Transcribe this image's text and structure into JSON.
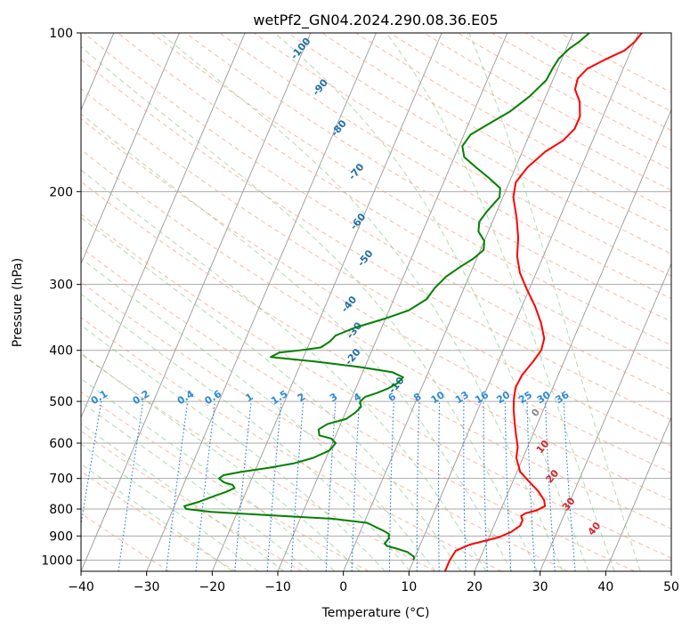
{
  "chart_data": {
    "type": "line",
    "title": "wetPf2_GN04.2024.290.08.36.E05",
    "xlabel": "Temperature (°C)",
    "ylabel": "Pressure (hPa)",
    "xlim": [
      -40,
      50
    ],
    "ylim": [
      1050,
      100
    ],
    "y_scale": "log",
    "grid": true,
    "x_ticks": [
      -40,
      -30,
      -20,
      -10,
      0,
      10,
      20,
      30,
      40,
      50
    ],
    "x_tick_labels": [
      "−40",
      "−30",
      "−20",
      "−10",
      "0",
      "10",
      "20",
      "30",
      "40",
      "50"
    ],
    "y_ticks": [
      100,
      200,
      300,
      400,
      500,
      600,
      700,
      800,
      900,
      1000
    ],
    "y_tick_labels": [
      "100",
      "200",
      "300",
      "400",
      "500",
      "600",
      "700",
      "800",
      "900",
      "1000"
    ],
    "series": [
      {
        "color": "#ff0000",
        "style": "temperature",
        "points": [
          [
            15.5,
            1050
          ],
          [
            15.5,
            1000
          ],
          [
            15.8,
            960
          ],
          [
            17.5,
            935
          ],
          [
            19.5,
            920
          ],
          [
            21.5,
            905
          ],
          [
            23.0,
            885
          ],
          [
            24.0,
            860
          ],
          [
            24.0,
            840
          ],
          [
            23.5,
            825
          ],
          [
            24.0,
            815
          ],
          [
            25.5,
            805
          ],
          [
            26.5,
            790
          ],
          [
            26.0,
            770
          ],
          [
            24.5,
            740
          ],
          [
            22.5,
            710
          ],
          [
            20.5,
            680
          ],
          [
            19.0,
            640
          ],
          [
            18.5,
            610
          ],
          [
            17.5,
            580
          ],
          [
            16.5,
            550
          ],
          [
            15.5,
            520
          ],
          [
            14.8,
            495
          ],
          [
            14.3,
            470
          ],
          [
            14.5,
            445
          ],
          [
            15.3,
            420
          ],
          [
            15.8,
            400
          ],
          [
            15.5,
            380
          ],
          [
            14.0,
            355
          ],
          [
            12.0,
            330
          ],
          [
            9.5,
            305
          ],
          [
            7.5,
            285
          ],
          [
            6.0,
            265
          ],
          [
            5.0,
            245
          ],
          [
            3.5,
            225
          ],
          [
            1.6,
            205
          ],
          [
            1.0,
            192
          ],
          [
            1.8,
            180
          ],
          [
            3.5,
            168
          ],
          [
            5.5,
            160
          ],
          [
            6.5,
            152
          ],
          [
            6.5,
            144
          ],
          [
            5.5,
            135
          ],
          [
            4.0,
            128
          ],
          [
            3.7,
            122
          ],
          [
            4.5,
            117
          ],
          [
            6.8,
            112
          ],
          [
            9.0,
            108
          ],
          [
            10.0,
            104
          ],
          [
            10.5,
            100
          ]
        ]
      },
      {
        "color": "#008000",
        "style": "dewpoint",
        "points": [
          [
            10.0,
            1000
          ],
          [
            9.8,
            985
          ],
          [
            8.5,
            965
          ],
          [
            6.5,
            950
          ],
          [
            5.0,
            940
          ],
          [
            4.5,
            930
          ],
          [
            4.8,
            910
          ],
          [
            4.5,
            892
          ],
          [
            3.5,
            880
          ],
          [
            2.0,
            865
          ],
          [
            0.5,
            850
          ],
          [
            -5.0,
            835
          ],
          [
            -15.0,
            822
          ],
          [
            -24.0,
            810
          ],
          [
            -28.0,
            800
          ],
          [
            -28.5,
            790
          ],
          [
            -26.5,
            775
          ],
          [
            -24.5,
            755
          ],
          [
            -23.0,
            742
          ],
          [
            -22.0,
            730
          ],
          [
            -22.5,
            720
          ],
          [
            -24.0,
            712
          ],
          [
            -25.0,
            700
          ],
          [
            -24.5,
            690
          ],
          [
            -22.0,
            680
          ],
          [
            -18.0,
            668
          ],
          [
            -14.5,
            655
          ],
          [
            -12.0,
            640
          ],
          [
            -10.0,
            620
          ],
          [
            -9.5,
            600
          ],
          [
            -10.5,
            588
          ],
          [
            -12.5,
            580
          ],
          [
            -13.0,
            565
          ],
          [
            -12.0,
            552
          ],
          [
            -9.5,
            540
          ],
          [
            -8.5,
            525
          ],
          [
            -8.0,
            512
          ],
          [
            -8.5,
            500
          ],
          [
            -8.0,
            490
          ],
          [
            -6.5,
            482
          ],
          [
            -5.0,
            472
          ],
          [
            -4.0,
            462
          ],
          [
            -3.5,
            450
          ],
          [
            -5.5,
            440
          ],
          [
            -11.0,
            430
          ],
          [
            -18.0,
            420
          ],
          [
            -25.0,
            412
          ],
          [
            -24.0,
            404
          ],
          [
            -21.0,
            400
          ],
          [
            -18.0,
            395
          ],
          [
            -17.0,
            385
          ],
          [
            -16.5,
            375
          ],
          [
            -14.0,
            362
          ],
          [
            -10.0,
            348
          ],
          [
            -7.0,
            336
          ],
          [
            -5.0,
            320
          ],
          [
            -4.5,
            305
          ],
          [
            -3.5,
            290
          ],
          [
            -2.0,
            278
          ],
          [
            -0.5,
            268
          ],
          [
            0.5,
            258
          ],
          [
            0.0,
            248
          ],
          [
            -1.5,
            238
          ],
          [
            -2.0,
            228
          ],
          [
            -1.5,
            218
          ],
          [
            -0.5,
            205
          ],
          [
            -1.0,
            197
          ],
          [
            -3.5,
            188
          ],
          [
            -6.0,
            180
          ],
          [
            -8.5,
            172
          ],
          [
            -9.5,
            164
          ],
          [
            -9.0,
            156
          ],
          [
            -7.0,
            149
          ],
          [
            -4.5,
            141
          ],
          [
            -2.5,
            132
          ],
          [
            -1.0,
            123
          ],
          [
            -0.8,
            117
          ],
          [
            -0.5,
            112
          ],
          [
            0.5,
            107
          ],
          [
            1.5,
            104
          ],
          [
            2.5,
            100
          ]
        ]
      }
    ],
    "background_lines": {
      "dry_adiabat_labels": [
        "-100",
        "-90",
        "-80",
        "-70",
        "-60",
        "-50",
        "-40",
        "-30",
        "-20",
        "-10"
      ],
      "moist_adiabat_labels": [
        "0",
        "10",
        "20",
        "30",
        "40"
      ],
      "mixing_ratio_labels": [
        "0.1",
        "0.2",
        "0.4",
        "0.6",
        "1",
        "1.5",
        "2",
        "3",
        "4",
        "6",
        "8",
        "10",
        "13",
        "16",
        "20",
        "25",
        "30",
        "36"
      ],
      "mixing_ratio_values": [
        0.1,
        0.2,
        0.4,
        0.6,
        1,
        1.5,
        2,
        3,
        4,
        6,
        8,
        10,
        13,
        16,
        20,
        25,
        30,
        36
      ]
    },
    "colors": {
      "isotherm": "#999999",
      "isobar": "#aaaaaa",
      "dry_adiabat": "#f5a184",
      "moist_adiabat": "#86c786",
      "mixing_ratio": "#1f77d4",
      "dry_adiabat_label": "#1f6fa8",
      "moist_adiabat_label": "#d62728",
      "mixing_ratio_label": "#2a8ad9"
    }
  }
}
